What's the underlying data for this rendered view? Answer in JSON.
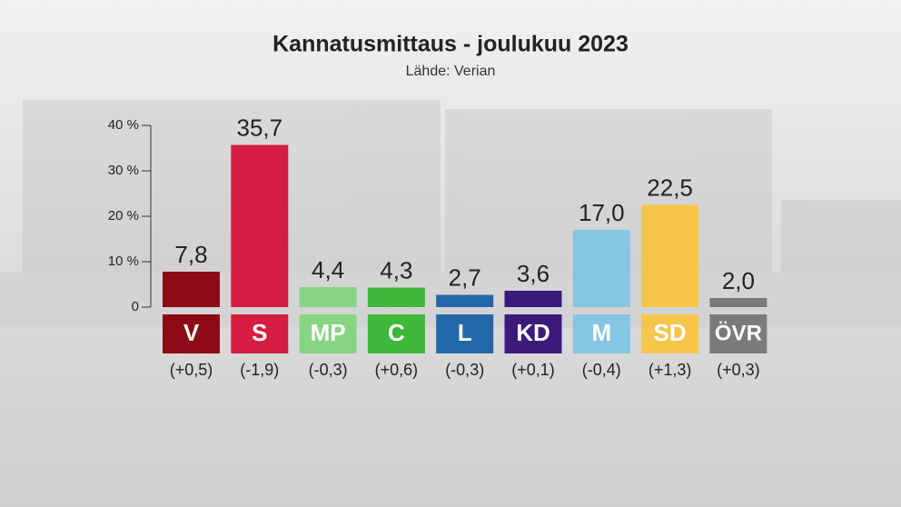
{
  "chart_data": {
    "type": "bar",
    "title": "Kannatusmittaus - joulukuu 2023",
    "subtitle": "Lähde: Verian",
    "categories": [
      "V",
      "S",
      "MP",
      "C",
      "L",
      "KD",
      "M",
      "SD",
      "ÖVR"
    ],
    "values": [
      7.8,
      35.7,
      4.4,
      4.3,
      2.7,
      3.6,
      17.0,
      22.5,
      2.0
    ],
    "value_labels": [
      "7,8",
      "35,7",
      "4,4",
      "4,3",
      "2,7",
      "3,6",
      "17,0",
      "22,5",
      "2,0"
    ],
    "changes": [
      "(+0,5)",
      "(-1,9)",
      "(-0,3)",
      "(+0,6)",
      "(-0,3)",
      "(+0,1)",
      "(-0,4)",
      "(+1,3)",
      "(+0,3)"
    ],
    "colors": [
      "#8b0a16",
      "#d41d40",
      "#86d583",
      "#3db83a",
      "#2467a8",
      "#3b1a7a",
      "#86c5e4",
      "#f6c54b",
      "#7a7a7a"
    ],
    "ylim": [
      0,
      40
    ],
    "yticks": [
      0,
      {
        "value": 10,
        "label": "10 %"
      },
      {
        "value": 20,
        "label": "20 %"
      },
      {
        "value": 30,
        "label": "30 %"
      },
      {
        "value": 40,
        "label": "40 %"
      }
    ]
  }
}
